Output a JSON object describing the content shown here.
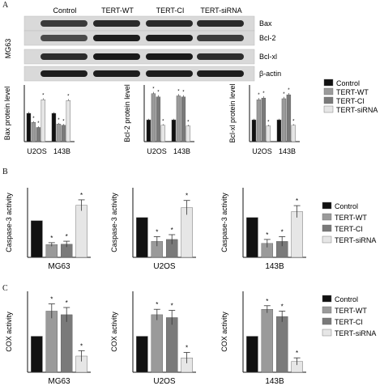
{
  "panel_letters": [
    "A",
    "B",
    "C"
  ],
  "blot": {
    "cell_line": "MG63",
    "lanes": [
      "Control",
      "TERT-WT",
      "TERT-CI",
      "TERT-siRNA"
    ],
    "rows": [
      "Bax",
      "Bcl-2",
      "Bcl-xl",
      "β-actin"
    ]
  },
  "legend": {
    "labels": [
      "Control",
      "TERT-WT",
      "TERT-CI",
      "TERT-siRNA"
    ],
    "colors": [
      "#111111",
      "#9a9a9a",
      "#7a7a7a",
      "#e6e6e6"
    ]
  },
  "sig_mark": "*",
  "chart_data": [
    {
      "type": "bar",
      "panel": "A",
      "ylabel": "Bax protein level",
      "categories": [
        "U2OS",
        "143B"
      ],
      "series": [
        {
          "name": "Control",
          "values": [
            1.0,
            1.0
          ],
          "errors": [
            0.05,
            0.04
          ]
        },
        {
          "name": "TERT-WT",
          "values": [
            0.68,
            0.62
          ],
          "errors": [
            0.04,
            0.04
          ]
        },
        {
          "name": "TERT-CI",
          "values": [
            0.5,
            0.58
          ],
          "errors": [
            0.04,
            0.04
          ]
        },
        {
          "name": "TERT-siRNA",
          "values": [
            1.48,
            1.45
          ],
          "errors": [
            0.05,
            0.05
          ]
        }
      ],
      "significant": [
        [
          false,
          false
        ],
        [
          true,
          true
        ],
        [
          true,
          true
        ],
        [
          true,
          true
        ]
      ],
      "ylim": [
        0,
        2
      ]
    },
    {
      "type": "bar",
      "panel": "A",
      "ylabel": "Bcl-2 protein level",
      "categories": [
        "U2OS",
        "143B"
      ],
      "series": [
        {
          "name": "Control",
          "values": [
            1.0,
            1.0
          ],
          "errors": [
            0.05,
            0.05
          ]
        },
        {
          "name": "TERT-WT",
          "values": [
            2.2,
            2.1
          ],
          "errors": [
            0.08,
            0.08
          ]
        },
        {
          "name": "TERT-CI",
          "values": [
            2.05,
            2.05
          ],
          "errors": [
            0.08,
            0.08
          ]
        },
        {
          "name": "TERT-siRNA",
          "values": [
            0.75,
            0.72
          ],
          "errors": [
            0.05,
            0.05
          ]
        }
      ],
      "significant": [
        [
          false,
          false
        ],
        [
          true,
          true
        ],
        [
          true,
          true
        ],
        [
          true,
          true
        ]
      ],
      "ylim": [
        0,
        2.6
      ]
    },
    {
      "type": "bar",
      "panel": "A",
      "ylabel": "Bcl-xl protein level",
      "categories": [
        "U2OS",
        "143B"
      ],
      "series": [
        {
          "name": "Control",
          "values": [
            1.0,
            1.0
          ],
          "errors": [
            0.05,
            0.05
          ]
        },
        {
          "name": "TERT-WT",
          "values": [
            1.92,
            1.97
          ],
          "errors": [
            0.08,
            0.08
          ]
        },
        {
          "name": "TERT-CI",
          "values": [
            2.0,
            2.15
          ],
          "errors": [
            0.08,
            0.08
          ]
        },
        {
          "name": "TERT-siRNA",
          "values": [
            0.72,
            0.75
          ],
          "errors": [
            0.05,
            0.05
          ]
        }
      ],
      "significant": [
        [
          false,
          false
        ],
        [
          true,
          true
        ],
        [
          true,
          true
        ],
        [
          true,
          true
        ]
      ],
      "ylim": [
        0,
        2.6
      ]
    },
    {
      "type": "bar",
      "panel": "B",
      "ylabel": "Caspase-3 activity",
      "xlabel": "MG63",
      "categories": [
        "MG63"
      ],
      "yticks": [],
      "series": [
        {
          "name": "Control",
          "values": [
            1.0
          ],
          "errors": [
            0
          ]
        },
        {
          "name": "TERT-WT",
          "values": [
            0.35
          ],
          "errors": [
            0.05
          ]
        },
        {
          "name": "TERT-CI",
          "values": [
            0.36
          ],
          "errors": [
            0.08
          ]
        },
        {
          "name": "TERT-siRNA",
          "values": [
            1.42
          ],
          "errors": [
            0.15
          ]
        }
      ],
      "significant": [
        [
          false
        ],
        [
          true
        ],
        [
          true
        ],
        [
          true
        ]
      ],
      "ylim": [
        0,
        1.9
      ]
    },
    {
      "type": "bar",
      "panel": "B",
      "ylabel": "Caspase-3 activity",
      "xlabel": "U2OS",
      "categories": [
        "U2OS"
      ],
      "yticks": [],
      "series": [
        {
          "name": "Control",
          "values": [
            1.0
          ],
          "errors": [
            0
          ]
        },
        {
          "name": "TERT-WT",
          "values": [
            0.4
          ],
          "errors": [
            0.12
          ]
        },
        {
          "name": "TERT-CI",
          "values": [
            0.45
          ],
          "errors": [
            0.12
          ]
        },
        {
          "name": "TERT-siRNA",
          "values": [
            1.25
          ],
          "errors": [
            0.18
          ]
        }
      ],
      "significant": [
        [
          false
        ],
        [
          true
        ],
        [
          true
        ],
        [
          true
        ]
      ],
      "ylim": [
        0,
        1.75
      ]
    },
    {
      "type": "bar",
      "panel": "B",
      "ylabel": "Caspase-3 activity",
      "xlabel": "143B",
      "categories": [
        "143B"
      ],
      "yticks": [],
      "series": [
        {
          "name": "Control",
          "values": [
            1.0
          ],
          "errors": [
            0
          ]
        },
        {
          "name": "TERT-WT",
          "values": [
            0.35
          ],
          "errors": [
            0.1
          ]
        },
        {
          "name": "TERT-CI",
          "values": [
            0.4
          ],
          "errors": [
            0.12
          ]
        },
        {
          "name": "TERT-siRNA",
          "values": [
            1.15
          ],
          "errors": [
            0.15
          ]
        }
      ],
      "significant": [
        [
          false
        ],
        [
          true
        ],
        [
          true
        ],
        [
          true
        ]
      ],
      "ylim": [
        0,
        1.75
      ]
    },
    {
      "type": "bar",
      "panel": "C",
      "ylabel": "COX activity",
      "xlabel": "MG63",
      "categories": [
        "MG63"
      ],
      "yticks": [],
      "series": [
        {
          "name": "Control",
          "values": [
            1.0
          ],
          "errors": [
            0
          ]
        },
        {
          "name": "TERT-WT",
          "values": [
            1.7
          ],
          "errors": [
            0.2
          ]
        },
        {
          "name": "TERT-CI",
          "values": [
            1.6
          ],
          "errors": [
            0.2
          ]
        },
        {
          "name": "TERT-siRNA",
          "values": [
            0.45
          ],
          "errors": [
            0.15
          ]
        }
      ],
      "significant": [
        [
          false
        ],
        [
          true
        ],
        [
          true
        ],
        [
          true
        ]
      ],
      "ylim": [
        0,
        2.25
      ]
    },
    {
      "type": "bar",
      "panel": "C",
      "ylabel": "COX activity",
      "xlabel": "U2OS",
      "categories": [
        "U2OS"
      ],
      "yticks": [],
      "series": [
        {
          "name": "Control",
          "values": [
            1.0
          ],
          "errors": [
            0
          ]
        },
        {
          "name": "TERT-WT",
          "values": [
            1.6
          ],
          "errors": [
            0.15
          ]
        },
        {
          "name": "TERT-CI",
          "values": [
            1.52
          ],
          "errors": [
            0.2
          ]
        },
        {
          "name": "TERT-siRNA",
          "values": [
            0.4
          ],
          "errors": [
            0.15
          ]
        }
      ],
      "significant": [
        [
          false
        ],
        [
          true
        ],
        [
          true
        ],
        [
          true
        ]
      ],
      "ylim": [
        0,
        2.25
      ]
    },
    {
      "type": "bar",
      "panel": "C",
      "ylabel": "COX activity",
      "xlabel": "143B",
      "categories": [
        "143B"
      ],
      "yticks": [],
      "series": [
        {
          "name": "Control",
          "values": [
            1.0
          ],
          "errors": [
            0
          ]
        },
        {
          "name": "TERT-WT",
          "values": [
            1.75
          ],
          "errors": [
            0.1
          ]
        },
        {
          "name": "TERT-CI",
          "values": [
            1.55
          ],
          "errors": [
            0.15
          ]
        },
        {
          "name": "TERT-siRNA",
          "values": [
            0.3
          ],
          "errors": [
            0.1
          ]
        }
      ],
      "significant": [
        [
          false
        ],
        [
          true
        ],
        [
          true
        ],
        [
          true
        ]
      ],
      "ylim": [
        0,
        2.25
      ]
    }
  ]
}
